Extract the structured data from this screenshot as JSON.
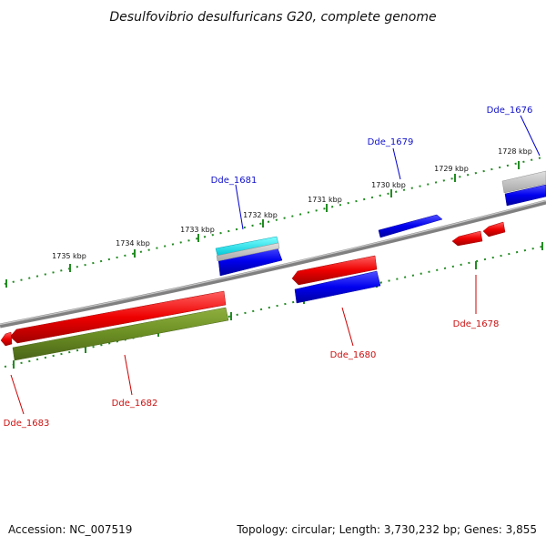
{
  "title": "Desulfovibrio desulfuricans G20, complete genome",
  "footer": {
    "accession": "Accession: NC_007519",
    "topology": "Topology: circular; Length: 3,730,232 bp; Genes: 3,855"
  },
  "colors": {
    "forward_gene": "#0000ee",
    "reverse_gene": "#ee0000",
    "rna_gene": "#00e5ee",
    "pseudogene": "#6b8e23",
    "backbone": "#808080",
    "ticks": "#228b22",
    "forward_label": "#1010cc",
    "reverse_label": "#cc1010"
  },
  "kbp_ticks": [
    "1735 kbp",
    "1734 kbp",
    "1733 kbp",
    "1732 kbp",
    "1731 kbp",
    "1730 kbp",
    "1729 kbp",
    "1728 kbp"
  ],
  "gene_labels": [
    {
      "id": "Dde_1676",
      "strand": "forward"
    },
    {
      "id": "Dde_1679",
      "strand": "forward"
    },
    {
      "id": "Dde_1681",
      "strand": "forward"
    },
    {
      "id": "Dde_1678",
      "strand": "reverse"
    },
    {
      "id": "Dde_1680",
      "strand": "reverse"
    },
    {
      "id": "Dde_1682",
      "strand": "reverse"
    },
    {
      "id": "Dde_1683",
      "strand": "reverse"
    }
  ]
}
